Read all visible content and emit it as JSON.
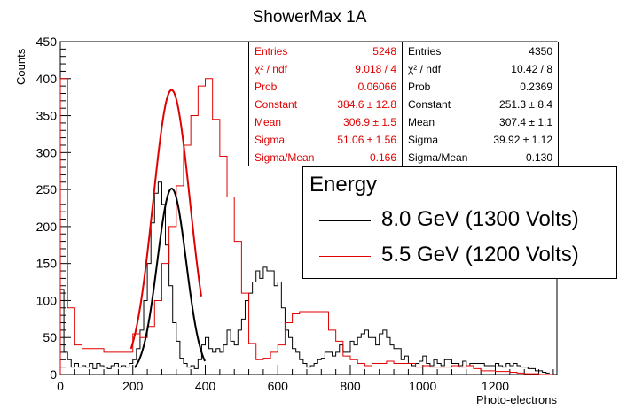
{
  "title": "ShowerMax 1A",
  "chart_data": {
    "type": "histogram",
    "title": "ShowerMax 1A",
    "xlabel": "Photo-electrons",
    "ylabel": "Counts",
    "xlim": [
      0,
      1370
    ],
    "ylim": [
      0,
      450
    ],
    "xticks": [
      0,
      200,
      400,
      600,
      800,
      1000,
      1200
    ],
    "yticks": [
      0,
      50,
      100,
      150,
      200,
      250,
      300,
      350,
      400,
      450
    ],
    "series": [
      {
        "name": "8.0 GeV (1300 Volts)",
        "color": "#000000",
        "bin_width": 10,
        "x_start": 0,
        "counts": [
          115,
          30,
          20,
          10,
          15,
          10,
          12,
          10,
          15,
          8,
          15,
          12,
          10,
          8,
          12,
          15,
          10,
          12,
          10,
          15,
          20,
          35,
          60,
          100,
          150,
          205,
          245,
          260,
          230,
          175,
          120,
          70,
          45,
          22,
          15,
          10,
          12,
          8,
          20,
          40,
          50,
          35,
          30,
          35,
          30,
          40,
          60,
          45,
          40,
          60,
          75,
          100,
          110,
          125,
          140,
          130,
          145,
          140,
          140,
          120,
          125,
          90,
          60,
          50,
          35,
          30,
          20,
          15,
          10,
          12,
          15,
          20,
          22,
          30,
          30,
          25,
          30,
          40,
          30,
          30,
          45,
          40,
          50,
          55,
          60,
          50,
          50,
          40,
          55,
          60,
          50,
          40,
          35,
          35,
          20,
          25,
          15,
          12,
          15,
          18,
          25,
          15,
          12,
          20,
          15,
          12,
          20,
          20,
          15,
          15,
          12,
          18,
          12,
          15,
          15,
          15,
          15,
          12,
          12,
          12,
          15,
          12,
          10,
          15,
          12,
          15,
          12,
          10,
          10,
          8,
          8,
          5,
          5,
          3,
          2
        ]
      },
      {
        "name": "5.5 GeV (1200 Volts)",
        "color": "#e00000",
        "bin_width": 20,
        "x_start": 0,
        "counts": [
          400,
          90,
          40,
          35,
          35,
          35,
          30,
          30,
          30,
          30,
          55,
          50,
          65,
          100,
          150,
          200,
          255,
          310,
          350,
          390,
          400,
          345,
          295,
          240,
          180,
          110,
          42,
          20,
          22,
          30,
          40,
          70,
          82,
          85,
          85,
          85,
          85,
          60,
          45,
          25,
          20,
          15,
          12,
          15,
          15,
          18,
          15,
          15,
          15,
          10,
          12,
          10,
          10,
          10,
          12,
          10,
          12,
          8,
          5,
          5,
          4,
          4,
          3,
          2,
          1,
          1,
          0,
          0
        ]
      }
    ],
    "fit_curves": [
      {
        "series": "8.0 GeV (1300 Volts)",
        "constant": 251.3,
        "mean": 307.4,
        "sigma": 39.92,
        "range": [
          205,
          400
        ]
      },
      {
        "series": "5.5 GeV (1200 Volts)",
        "constant": 384.6,
        "mean": 306.9,
        "sigma": 51.06,
        "range": [
          195,
          390
        ]
      }
    ]
  },
  "stats_red": {
    "color": "#e00000",
    "rows": [
      {
        "k": "Entries",
        "v": "5248"
      },
      {
        "k": "χ² / ndf",
        "v": "9.018 / 4"
      },
      {
        "k": "Prob",
        "v": "0.06066"
      },
      {
        "k": "Constant",
        "v": "384.6 ± 12.8"
      },
      {
        "k": "Mean",
        "v": "306.9 ± 1.5"
      },
      {
        "k": "Sigma",
        "v": "51.06 ± 1.56"
      },
      {
        "k": "Sigma/Mean",
        "v": "0.166"
      }
    ]
  },
  "stats_black": {
    "color": "#000000",
    "rows": [
      {
        "k": "Entries",
        "v": "4350"
      },
      {
        "k": "χ² / ndf",
        "v": "10.42 / 8"
      },
      {
        "k": "Prob",
        "v": "0.2369"
      },
      {
        "k": "Constant",
        "v": "251.3 ± 8.4"
      },
      {
        "k": "Mean",
        "v": "307.4 ± 1.1"
      },
      {
        "k": "Sigma",
        "v": "39.92 ± 1.12"
      },
      {
        "k": "Sigma/Mean",
        "v": "0.130"
      }
    ]
  },
  "legend": {
    "header": "Energy",
    "entries": [
      {
        "label": "8.0 GeV (1300 Volts)",
        "color": "#000000"
      },
      {
        "label": "5.5 GeV (1200 Volts)",
        "color": "#e00000"
      }
    ]
  }
}
